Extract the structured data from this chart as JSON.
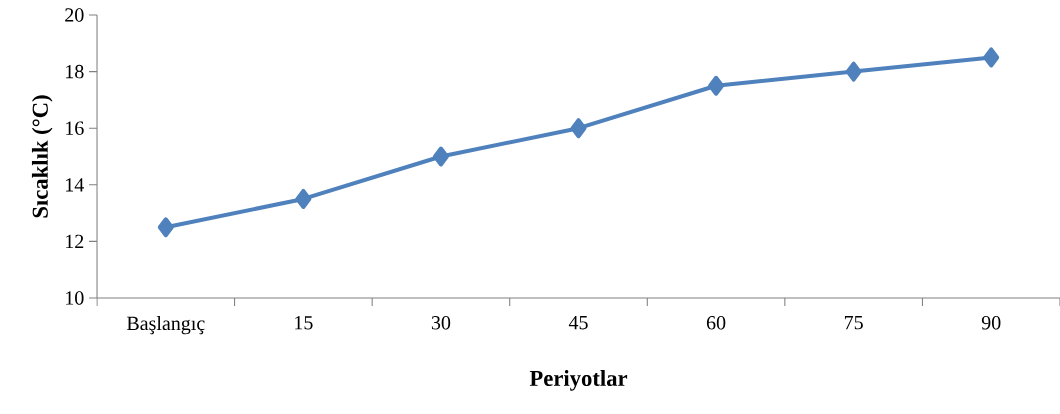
{
  "chart_data": {
    "type": "line",
    "xlabel": "Periyotlar",
    "ylabel": "Sıcaklık (°C)",
    "categories": [
      "Başlangıç",
      "15",
      "30",
      "45",
      "60",
      "75",
      "90"
    ],
    "values": [
      12.5,
      13.5,
      15,
      16,
      17.5,
      18,
      18.5
    ],
    "color": "#4f81bd",
    "marker": "diamond",
    "ylim": [
      10,
      20
    ],
    "yticks": [
      10,
      12,
      14,
      16,
      18,
      20
    ]
  }
}
